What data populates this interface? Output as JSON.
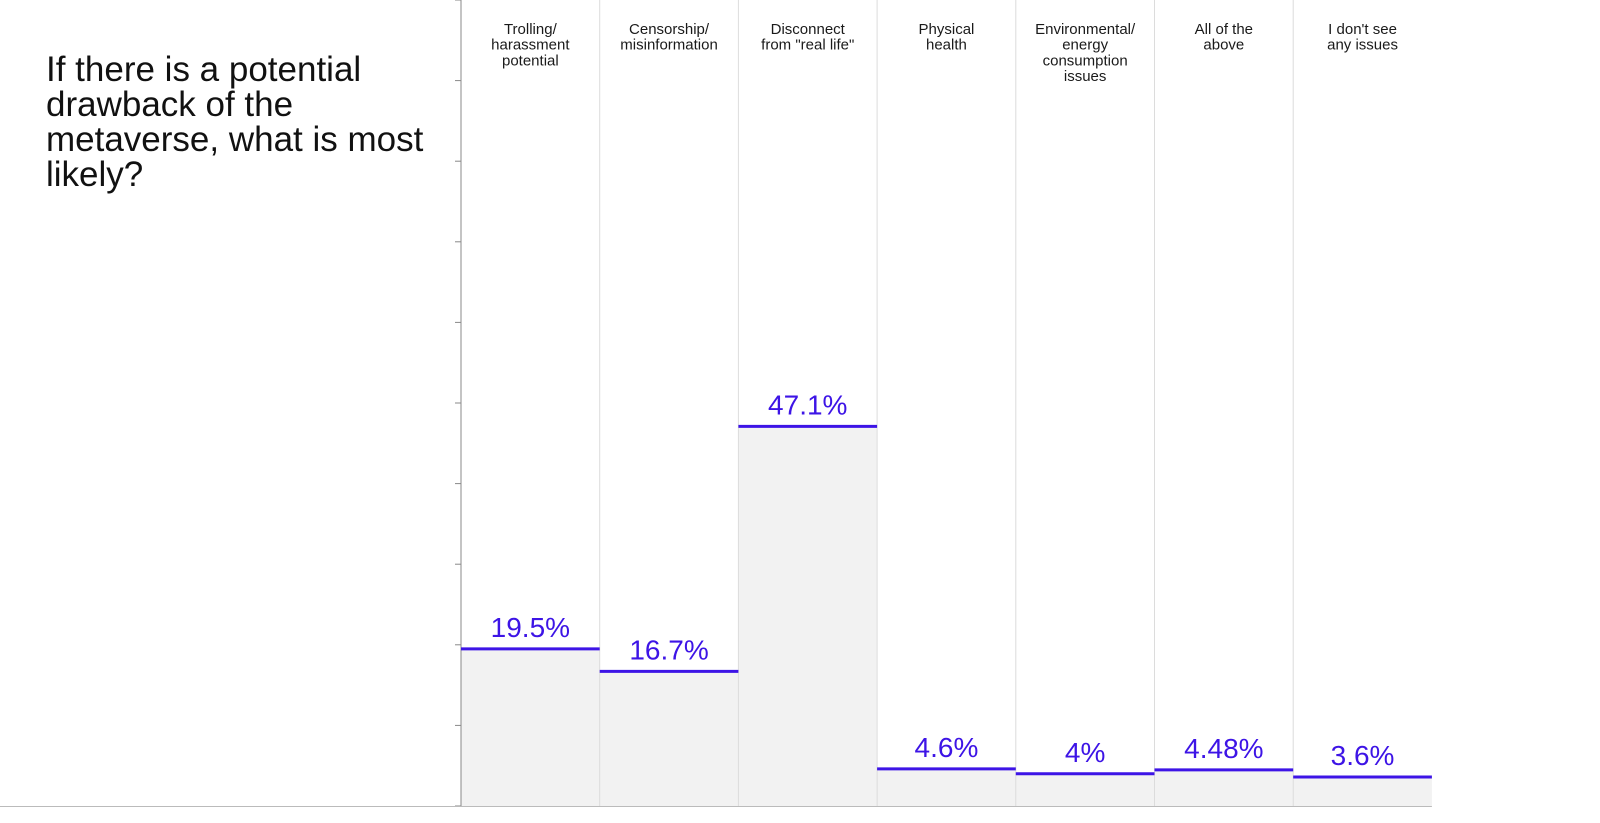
{
  "title": "If there is a potential drawback of the metaverse, what is most likely?",
  "colors": {
    "accent": "#3d14e6",
    "fill": "#f2f2f2",
    "divider": "#dcdcdc",
    "axis": "#888888"
  },
  "chart_data": {
    "type": "bar",
    "title": "If there is a potential drawback of the metaverse, what is most likely?",
    "categories": [
      [
        "Trolling/",
        "harassment",
        "potential"
      ],
      [
        "Censorship/",
        "misinformation"
      ],
      [
        "Disconnect",
        "from \"real life\""
      ],
      [
        "Physical",
        "health"
      ],
      [
        "Environmental/",
        "energy",
        "consumption",
        "issues"
      ],
      [
        "All of the",
        "above"
      ],
      [
        "I don't see",
        "any issues"
      ]
    ],
    "values": [
      19.5,
      16.7,
      47.1,
      4.6,
      4,
      4.48,
      3.6
    ],
    "value_labels": [
      "19.5%",
      "16.7%",
      "47.1%",
      "4.6%",
      "4%",
      "4.48%",
      "3.6%"
    ],
    "ylim": [
      0,
      100
    ],
    "grid": false,
    "legend": "none"
  }
}
